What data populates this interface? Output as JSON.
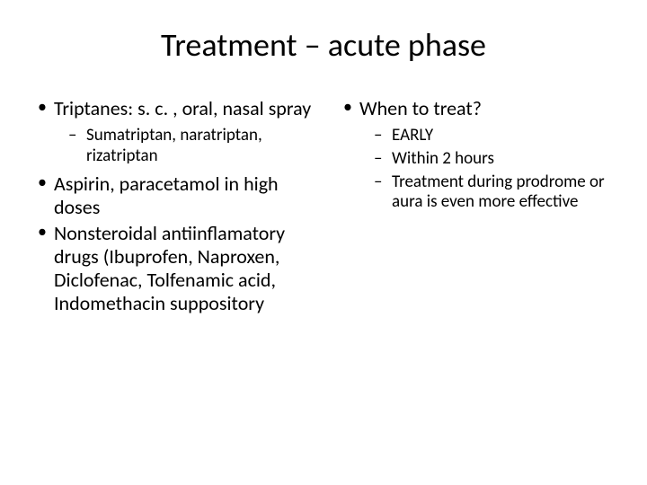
{
  "title": "Treatment – acute phase",
  "left": {
    "items": [
      {
        "text": "Triptanes: s. c. , oral, nasal spray",
        "sub": [
          "Sumatriptan, naratriptan, rizatriptan"
        ]
      },
      {
        "text": "Aspirin, paracetamol in high doses"
      },
      {
        "text": "Nonsteroidal antiinflamatory drugs (Ibuprofen, Naproxen, Diclofenac, Tolfenamic acid, Indomethacin suppository"
      }
    ]
  },
  "right": {
    "items": [
      {
        "text": "When to treat?",
        "sub": [
          "EARLY",
          "Within 2 hours",
          "Treatment during prodrome or aura is even more effective"
        ]
      }
    ]
  },
  "style": {
    "background": "#ffffff",
    "text_color": "#000000",
    "title_fontsize": 36,
    "lvl1_fontsize": 22,
    "lvl2_fontsize": 19,
    "font_family": "Calibri"
  }
}
